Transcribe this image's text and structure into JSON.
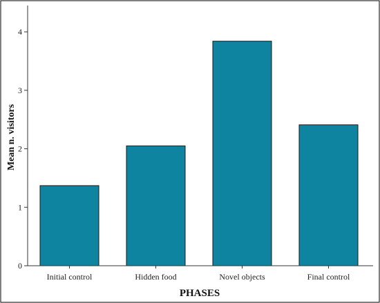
{
  "chart_data": {
    "type": "bar",
    "title": "",
    "xlabel": "PHASES",
    "ylabel": "Mean n. visitors",
    "categories": [
      "Initial control",
      "Hidden food",
      "Novel objects",
      "Final control"
    ],
    "values": [
      1.37,
      2.05,
      3.84,
      2.41
    ],
    "ylim": [
      0,
      4.45
    ],
    "yticks": [
      "0",
      "1",
      "2",
      "3",
      "4"
    ],
    "grid": false,
    "legend": "none",
    "colors": {
      "bar": "#0f84a0",
      "bar_edge": "#1a1a1a",
      "axis": "#333333",
      "frame": "#000000"
    }
  }
}
